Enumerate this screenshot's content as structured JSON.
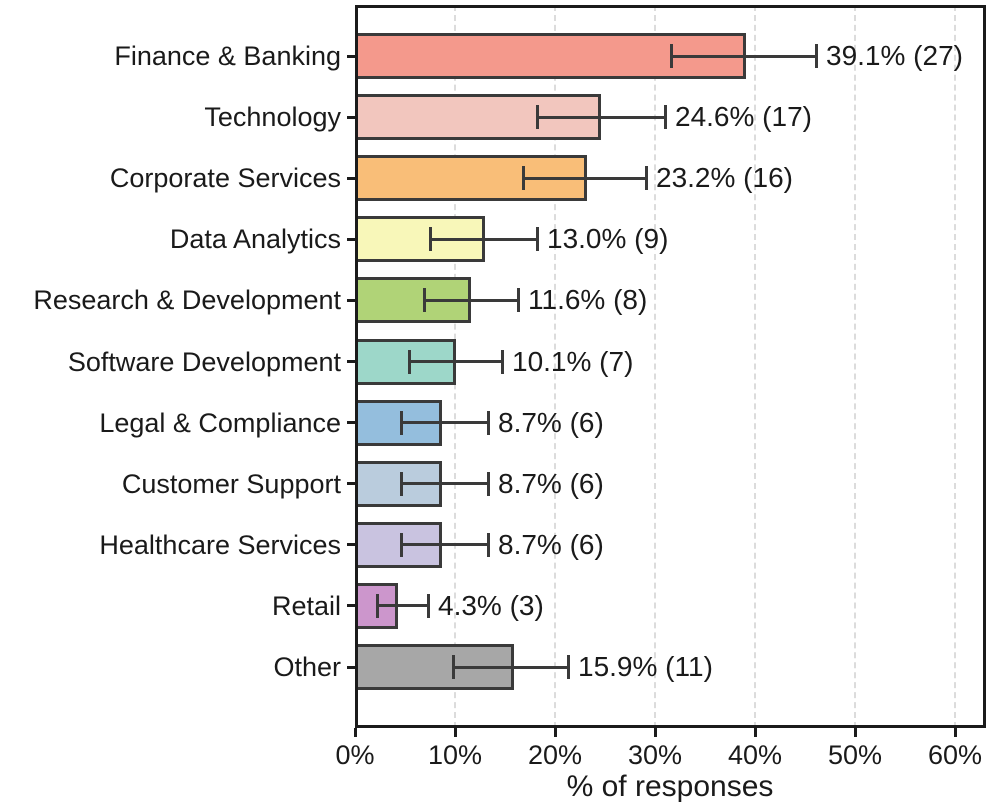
{
  "chart_data": {
    "type": "bar",
    "orientation": "horizontal",
    "title": "",
    "xlabel": "% of responses",
    "ylabel": "",
    "xlim": [
      0,
      63
    ],
    "xticks": [
      "0%",
      "10%",
      "20%",
      "30%",
      "40%",
      "50%",
      "60%"
    ],
    "xtick_values": [
      0,
      10,
      20,
      30,
      40,
      50,
      60
    ],
    "grid": "vertical-dashed",
    "legend": "none",
    "categories": [
      "Finance & Banking",
      "Technology",
      "Corporate Services",
      "Data Analytics",
      "Research & Development",
      "Software Development",
      "Legal & Compliance",
      "Customer Support",
      "Healthcare Services",
      "Retail",
      "Other"
    ],
    "values": [
      39.1,
      24.6,
      23.2,
      13.0,
      11.6,
      10.1,
      8.7,
      8.7,
      8.7,
      4.3,
      15.9
    ],
    "counts": [
      27,
      17,
      16,
      9,
      8,
      7,
      6,
      6,
      6,
      3,
      11
    ],
    "value_labels": [
      "39.1% (27)",
      "24.6% (17)",
      "23.2% (16)",
      "13.0% (9)",
      "11.6% (8)",
      "10.1% (7)",
      "8.7% (6)",
      "8.7% (6)",
      "8.7% (6)",
      "4.3% (3)",
      "15.9% (11)"
    ],
    "error_low": [
      31.6,
      18.2,
      16.8,
      7.5,
      6.9,
      5.4,
      4.6,
      4.6,
      4.6,
      2.2,
      9.8
    ],
    "error_high": [
      46.1,
      31.0,
      29.1,
      18.2,
      16.3,
      14.7,
      13.3,
      13.3,
      13.3,
      7.3,
      21.3
    ],
    "bar_colors": [
      "#F4998C",
      "#F2C6BE",
      "#F9BE78",
      "#F8F7B9",
      "#B0D377",
      "#9DD7C9",
      "#94BEDD",
      "#BACCDD",
      "#C9C3E0",
      "#CC96CC",
      "#A7A7A7"
    ],
    "bar_edge_color": "#3A3A3A",
    "error_bar_color": "#3A3A3A",
    "gridline_color": "#DCDCDC",
    "frame_color": "#1B1B1B",
    "text_color": "#1A1A1A"
  }
}
